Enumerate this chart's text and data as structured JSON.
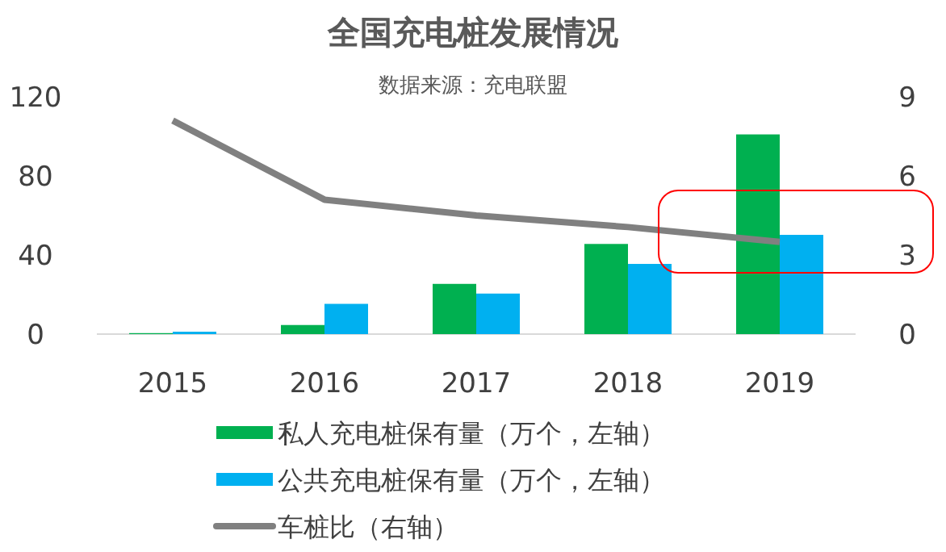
{
  "chart_data": {
    "type": "bar",
    "title": "全国充电桩发展情况",
    "subtitle": "数据来源：充电联盟",
    "categories": [
      "2015",
      "2016",
      "2017",
      "2018",
      "2019"
    ],
    "series": [
      {
        "name": "私人充电桩保有量（万个，左轴）",
        "color": "#00b050",
        "values": [
          0.5,
          4.6,
          25.4,
          45.6,
          101
        ]
      },
      {
        "name": "公共充电桩保有量（万个，左轴）",
        "color": "#00b0f0",
        "values": [
          1.2,
          15.3,
          20.5,
          35.5,
          50.2
        ]
      },
      {
        "name": "车桩比（右轴）",
        "color": "#808080",
        "type": "line",
        "axis": "y2",
        "values": [
          8.1,
          5.1,
          4.5,
          4.06,
          3.5
        ]
      }
    ],
    "ylim": [
      0,
      120
    ],
    "yticks": [
      0,
      40,
      80,
      120
    ],
    "y2lim": [
      0,
      9
    ],
    "y2ticks": [
      0,
      3,
      6,
      9
    ],
    "grid": false,
    "legend": "bottom"
  }
}
